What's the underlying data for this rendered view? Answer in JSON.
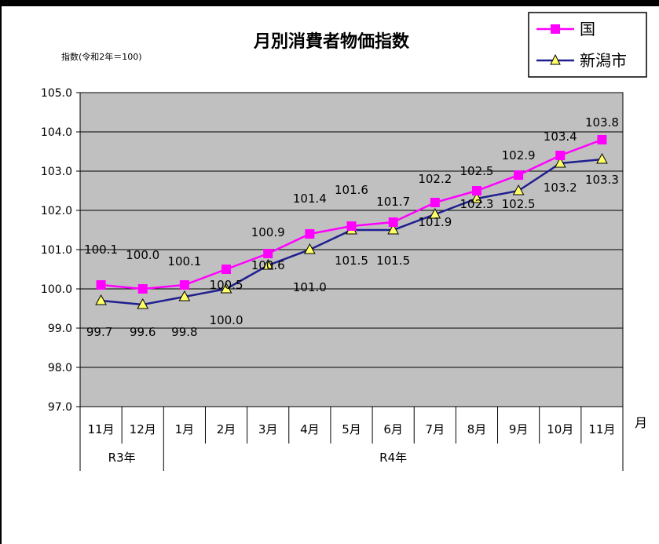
{
  "chart_data": {
    "type": "line",
    "title": "月別消費者物価指数",
    "ylabel": "指数(令和2年＝100)",
    "xlabel": "月",
    "ylim": [
      97.0,
      105.0
    ],
    "yticks": [
      "97.0",
      "98.0",
      "99.0",
      "100.0",
      "101.0",
      "102.0",
      "103.0",
      "104.0",
      "105.0"
    ],
    "categories": [
      "11月",
      "12月",
      "1月",
      "2月",
      "3月",
      "4月",
      "5月",
      "6月",
      "7月",
      "8月",
      "9月",
      "10月",
      "11月"
    ],
    "year_groups": [
      {
        "label": "R3年",
        "count": 2
      },
      {
        "label": "R4年",
        "count": 11
      }
    ],
    "grid": true,
    "legend_position": "top-right",
    "series": [
      {
        "name": "国",
        "marker": "square",
        "color": "#FF00FF",
        "values": [
          100.1,
          100.0,
          100.1,
          100.5,
          100.9,
          101.4,
          101.6,
          101.7,
          102.2,
          102.5,
          102.9,
          103.4,
          103.8
        ],
        "labels": [
          "100.1",
          "100.0",
          "100.1",
          "100.5",
          "100.9",
          "101.4",
          "101.6",
          "101.7",
          "102.2",
          "102.5",
          "102.9",
          "103.4",
          "103.8"
        ]
      },
      {
        "name": "新潟市",
        "marker": "triangle",
        "color": "#1F1F8F",
        "marker_fill": "#FFFF66",
        "values": [
          99.7,
          99.6,
          99.8,
          100.0,
          100.6,
          101.0,
          101.5,
          101.5,
          101.9,
          102.3,
          102.5,
          103.2,
          103.3
        ],
        "labels": [
          "99.7",
          "99.6",
          "99.8",
          "100.0",
          "100.6",
          "101.0",
          "101.5",
          "101.5",
          "101.9",
          "102.3",
          "102.5",
          "103.2",
          "103.3"
        ]
      }
    ]
  }
}
